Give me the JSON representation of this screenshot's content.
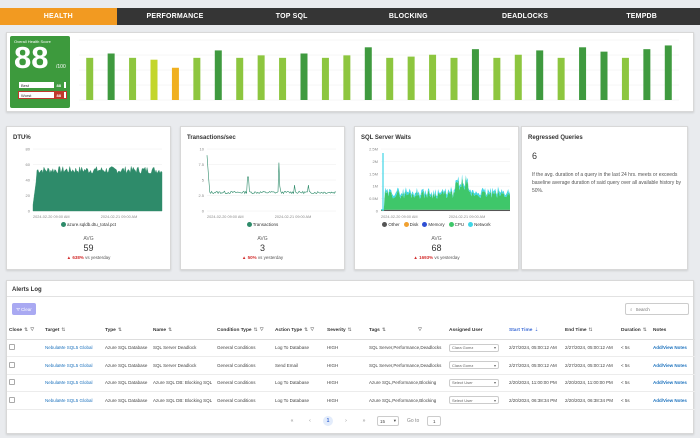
{
  "tabs": [
    {
      "label": "HEALTH",
      "active": true
    },
    {
      "label": "PERFORMANCE",
      "active": false
    },
    {
      "label": "TOP SQL",
      "active": false
    },
    {
      "label": "BLOCKING",
      "active": false
    },
    {
      "label": "DEADLOCKS",
      "active": false
    },
    {
      "label": "TEMPDB",
      "active": false
    }
  ],
  "health": {
    "title": "Overall Health Score",
    "score": "88",
    "denominator": "/100",
    "best_label": "Best",
    "best_value": "88",
    "worst_label": "Worst",
    "worst_value": "88",
    "bars": [
      {
        "value": 68,
        "color": "#8dc63f"
      },
      {
        "value": 75,
        "color": "#3f9a3f"
      },
      {
        "value": 68,
        "color": "#8dc63f"
      },
      {
        "value": 65,
        "color": "#c3d62c"
      },
      {
        "value": 52,
        "color": "#f0b020"
      },
      {
        "value": 68,
        "color": "#8dc63f"
      },
      {
        "value": 80,
        "color": "#3f9a3f"
      },
      {
        "value": 68,
        "color": "#8dc63f"
      },
      {
        "value": 72,
        "color": "#8dc63f"
      },
      {
        "value": 68,
        "color": "#8dc63f"
      },
      {
        "value": 75,
        "color": "#3f9a3f"
      },
      {
        "value": 68,
        "color": "#8dc63f"
      },
      {
        "value": 72,
        "color": "#8dc63f"
      },
      {
        "value": 85,
        "color": "#3f9a3f"
      },
      {
        "value": 68,
        "color": "#8dc63f"
      },
      {
        "value": 70,
        "color": "#8dc63f"
      },
      {
        "value": 73,
        "color": "#8dc63f"
      },
      {
        "value": 68,
        "color": "#8dc63f"
      },
      {
        "value": 82,
        "color": "#3f9a3f"
      },
      {
        "value": 68,
        "color": "#8dc63f"
      },
      {
        "value": 73,
        "color": "#8dc63f"
      },
      {
        "value": 80,
        "color": "#3f9a3f"
      },
      {
        "value": 68,
        "color": "#8dc63f"
      },
      {
        "value": 85,
        "color": "#3f9a3f"
      },
      {
        "value": 78,
        "color": "#3f9a3f"
      },
      {
        "value": 68,
        "color": "#8dc63f"
      },
      {
        "value": 82,
        "color": "#3f9a3f"
      },
      {
        "value": 88,
        "color": "#3f9a3f"
      }
    ]
  },
  "cards": {
    "dtu": {
      "title": "DTU%",
      "yticks": [
        "80",
        "60",
        "40",
        "20",
        "0"
      ],
      "x_start": "2024-02-20 09:00 AM",
      "x_end": "2024-02-21 09:00 AM",
      "legend": [
        {
          "label": "azure.sqldb.dtu_total.pct",
          "color": "#2e8b6a"
        }
      ],
      "avg_label": "AVG",
      "avg_value": "59",
      "change": "638%",
      "change_suffix": "vs yesterday"
    },
    "tps": {
      "title": "Transactions/sec",
      "yticks": [
        "10",
        "7.5",
        "5",
        "2.5",
        "0"
      ],
      "x_start": "2024-02-20 09:00 AM",
      "x_end": "2024-02-21 09:00 AM",
      "legend": [
        {
          "label": "Transactions",
          "color": "#2e8b6a"
        }
      ],
      "avg_label": "AVG",
      "avg_value": "3",
      "change": "50%",
      "change_suffix": "vs yesterday"
    },
    "waits": {
      "title": "SQL Server Waits",
      "yticks": [
        "2.5M",
        "2M",
        "1.5M",
        "1M",
        "0.5M",
        "0"
      ],
      "x_start": "2024-02-20 09:00 AM",
      "x_end": "2024-02-21 09:00 AM",
      "legend": [
        {
          "label": "Other",
          "color": "#555555"
        },
        {
          "label": "Disk",
          "color": "#f0a030"
        },
        {
          "label": "Memory",
          "color": "#2e4fd4"
        },
        {
          "label": "CPU",
          "color": "#3fc76a"
        },
        {
          "label": "Network",
          "color": "#3fd6e6"
        }
      ],
      "avg_label": "AVG",
      "avg_value": "68",
      "change": "1693%",
      "change_suffix": "vs yesterday"
    },
    "regressed": {
      "title": "Regressed Queries",
      "value": "6",
      "description": "If the avg. duration of a query in the last 24 hrs. meets or exceeds baseline average duration of said query over all available history by 50%."
    }
  },
  "alerts": {
    "title": "Alerts Log",
    "clear_label": "Clear",
    "search_placeholder": "Search",
    "columns": [
      "Close",
      "Target",
      "Type",
      "Name",
      "Condition Type",
      "Action Type",
      "Severity",
      "Tags",
      "Assigned User",
      "Start Time",
      "End Time",
      "Duration",
      "Notes"
    ],
    "rows": [
      {
        "target": "NebulaMe SQL5 Global",
        "type": "Azure SQL Database",
        "name": "SQL Server Deadlock",
        "condition": "General Conditions",
        "action": "Log To Database",
        "severity": "HIGH",
        "tags": "SQL Server,Performance,Deadlocks",
        "user": "Clara Gomz",
        "start": "2/27/2024, 05:00:12 AM",
        "end": "2/27/2024, 05:00:12 AM",
        "duration": "< 5s",
        "notes": "Add/View Notes"
      },
      {
        "target": "NebulaMe SQL5 Global",
        "type": "Azure SQL Database",
        "name": "SQL Server Deadlock",
        "condition": "General Conditions",
        "action": "Send Email",
        "severity": "HIGH",
        "tags": "SQL Server,Performance,Deadlocks",
        "user": "Clara Gomz",
        "start": "2/27/2024, 05:00:12 AM",
        "end": "2/27/2024, 05:00:12 AM",
        "duration": "< 5s",
        "notes": "Add/View Notes"
      },
      {
        "target": "NebulaMe SQL5 Global",
        "type": "Azure SQL Database",
        "name": "Azure SQL DB: Blocking SQL",
        "condition": "General Conditions",
        "action": "Log To Database",
        "severity": "HIGH",
        "tags": "Azure SQL,Performance,Blocking",
        "user": "Select User",
        "start": "2/20/2024, 11:00:00 PM",
        "end": "2/20/2024, 11:00:00 PM",
        "duration": "< 5s",
        "notes": "Add/View Notes"
      },
      {
        "target": "NebulaMe SQL5 Global",
        "type": "Azure SQL Database",
        "name": "Azure SQL DB: Blocking SQL",
        "condition": "General Conditions",
        "action": "Log To Database",
        "severity": "HIGH",
        "tags": "Azure SQL,Performance,Blocking",
        "user": "Select User",
        "start": "2/20/2024, 06:38:34 PM",
        "end": "2/20/2024, 06:38:34 PM",
        "duration": "< 5s",
        "notes": "Add/View Notes"
      }
    ],
    "pagination": {
      "first": "«",
      "prev": "‹",
      "current": "1",
      "next": "›",
      "last": "»",
      "page_size": "15",
      "goto_label": "Go to",
      "goto_value": "1"
    }
  }
}
